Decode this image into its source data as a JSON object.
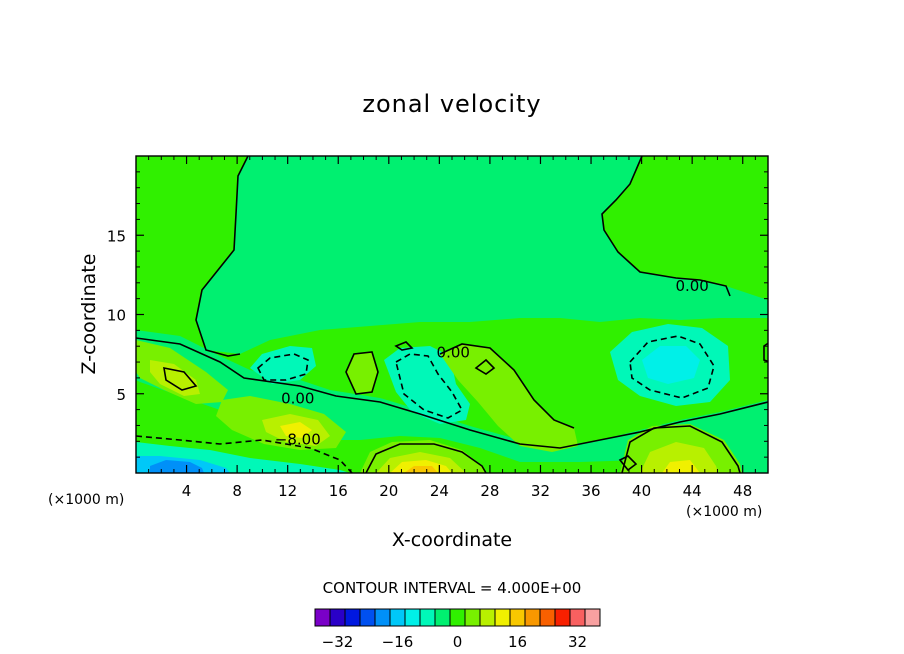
{
  "chart_data": {
    "type": "heatmap",
    "title": "zonal velocity",
    "xlabel": "X-coordinate",
    "ylabel": "Z-coordinate",
    "x_unit_left": "(×1000 m)",
    "x_unit_right": "(×1000 m)",
    "xlim": [
      0,
      50
    ],
    "ylim": [
      0,
      20
    ],
    "x_ticks": [
      4,
      8,
      12,
      16,
      20,
      24,
      28,
      32,
      36,
      40,
      44,
      48
    ],
    "y_ticks": [
      5,
      10,
      15
    ],
    "grid": false,
    "contour_labels": [
      {
        "text": "0.00",
        "x": 12.8,
        "y": 4.7
      },
      {
        "text": "-8.00",
        "x": 12.8,
        "y": 2.1
      },
      {
        "text": "0.00",
        "x": 25.1,
        "y": 7.6
      },
      {
        "text": "0.00",
        "x": 44.0,
        "y": 11.8
      }
    ],
    "contour_interval_text": "CONTOUR INTERVAL = 4.000E+00",
    "colorbar": {
      "levels": [
        -36,
        -32,
        -28,
        -24,
        -20,
        -16,
        -12,
        -8,
        -4,
        0,
        4,
        8,
        12,
        16,
        20,
        24,
        28,
        32,
        36
      ],
      "tick_labels": [
        "-32",
        "-16",
        "0",
        "16",
        "32"
      ],
      "tick_values": [
        -32,
        -16,
        0,
        16,
        32
      ],
      "colors": [
        "#7a00c8",
        "#2a00c8",
        "#0018e0",
        "#0050f0",
        "#0090f8",
        "#00c8f8",
        "#00f0e8",
        "#00f8b8",
        "#00f070",
        "#30f000",
        "#78f000",
        "#b8f000",
        "#f0f000",
        "#f8c800",
        "#f89800",
        "#f86000",
        "#f82000",
        "#f86060",
        "#f8a0a0"
      ]
    }
  }
}
